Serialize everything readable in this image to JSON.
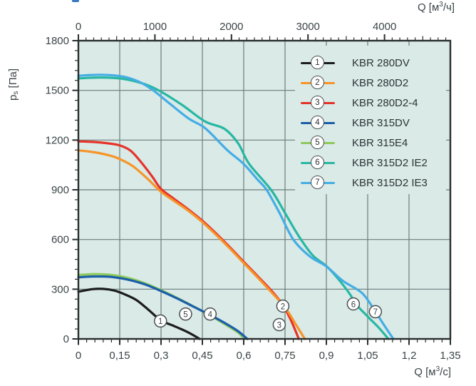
{
  "page": {
    "background": "#ffffff",
    "fragment_color": "#3a7ac0"
  },
  "axes_titles": {
    "top": {
      "prefix": "Q [м",
      "sup": "3",
      "suffix": "/ч]"
    },
    "bottom": {
      "prefix": "Q [м",
      "sup": "3",
      "suffix": "/с]"
    },
    "left": {
      "p": "p",
      "sub": "s",
      "units": " [Па]"
    }
  },
  "legend": {
    "items": [
      {
        "num": "1",
        "label": "KBR 280DV"
      },
      {
        "num": "2",
        "label": "KBR 280D2"
      },
      {
        "num": "3",
        "label": "KBR 280D2-4"
      },
      {
        "num": "4",
        "label": "KBR 315DV"
      },
      {
        "num": "5",
        "label": "KBR 315E4"
      },
      {
        "num": "6",
        "label": "KBR 315D2 IE2"
      },
      {
        "num": "7",
        "label": "KBR 315D2 IE3"
      }
    ]
  },
  "chart_data": {
    "type": "line",
    "title": "Fan performance curves: static pressure vs flow rate",
    "plot_bg": "#d9eae7",
    "grid_color": "#6e7d7b",
    "axis_color": "#2a2e2e",
    "tick_text_color": "#3b4547",
    "marker_border_color": "#4a5052",
    "x_bottom": {
      "label": "Q [м³/с]",
      "min": 0,
      "max": 1.35,
      "major_ticks": [
        0,
        0.15,
        0.3,
        0.45,
        0.6,
        0.75,
        0.9,
        1.05,
        1.2,
        1.35
      ],
      "tick_labels": [
        "0",
        "0,15",
        "0,3",
        "0,45",
        "0,6",
        "0,75",
        "0,9",
        "1,05",
        "1,2",
        "1,35"
      ],
      "minor_step": 0.03
    },
    "x_top": {
      "label": "Q [м³/ч]",
      "min": 0,
      "max": 4860,
      "major_ticks": [
        0,
        1000,
        2000,
        3000,
        4000
      ],
      "tick_labels": [
        "0",
        "1000",
        "2000",
        "3000",
        "4000"
      ],
      "minor_step": 100,
      "conversion_to_bottom": 3600
    },
    "y": {
      "label": "pₛ [Па]",
      "min": 0,
      "max": 1800,
      "major_ticks": [
        0,
        300,
        600,
        900,
        1200,
        1500,
        1800
      ],
      "tick_labels": [
        "0",
        "300",
        "600",
        "900",
        "1200",
        "1500",
        "1800"
      ],
      "minor_step": 60
    },
    "series": [
      {
        "num": "1",
        "name": "KBR 280DV",
        "color": "#1c1c1c",
        "points": [
          [
            0,
            285
          ],
          [
            0.05,
            300
          ],
          [
            0.09,
            302
          ],
          [
            0.13,
            292
          ],
          [
            0.17,
            268
          ],
          [
            0.21,
            235
          ],
          [
            0.25,
            182
          ],
          [
            0.3,
            112
          ],
          [
            0.35,
            76
          ],
          [
            0.4,
            38
          ],
          [
            0.44,
            0
          ]
        ]
      },
      {
        "num": "2",
        "name": "KBR 280D2",
        "color": "#f79428",
        "points": [
          [
            0,
            1138
          ],
          [
            0.06,
            1126
          ],
          [
            0.12,
            1104
          ],
          [
            0.16,
            1078
          ],
          [
            0.2,
            1040
          ],
          [
            0.25,
            968
          ],
          [
            0.3,
            888
          ],
          [
            0.35,
            830
          ],
          [
            0.4,
            772
          ],
          [
            0.45,
            705
          ],
          [
            0.5,
            628
          ],
          [
            0.55,
            545
          ],
          [
            0.6,
            458
          ],
          [
            0.65,
            372
          ],
          [
            0.7,
            283
          ],
          [
            0.75,
            190
          ],
          [
            0.79,
            85
          ],
          [
            0.822,
            0
          ]
        ]
      },
      {
        "num": "3",
        "name": "KBR 280D2-4",
        "color": "#e63329",
        "points": [
          [
            0,
            1192
          ],
          [
            0.06,
            1188
          ],
          [
            0.11,
            1180
          ],
          [
            0.15,
            1168
          ],
          [
            0.19,
            1135
          ],
          [
            0.23,
            1062
          ],
          [
            0.27,
            975
          ],
          [
            0.3,
            905
          ],
          [
            0.35,
            842
          ],
          [
            0.4,
            780
          ],
          [
            0.45,
            713
          ],
          [
            0.5,
            636
          ],
          [
            0.55,
            553
          ],
          [
            0.6,
            466
          ],
          [
            0.65,
            380
          ],
          [
            0.7,
            292
          ],
          [
            0.74,
            210
          ],
          [
            0.77,
            118
          ],
          [
            0.8,
            0
          ]
        ]
      },
      {
        "num": "4",
        "name": "KBR 315DV",
        "color": "#1b5ea8",
        "points": [
          [
            0,
            372
          ],
          [
            0.06,
            377
          ],
          [
            0.12,
            374
          ],
          [
            0.18,
            358
          ],
          [
            0.24,
            330
          ],
          [
            0.3,
            289
          ],
          [
            0.36,
            243
          ],
          [
            0.42,
            193
          ],
          [
            0.48,
            143
          ],
          [
            0.54,
            88
          ],
          [
            0.58,
            46
          ],
          [
            0.613,
            0
          ]
        ]
      },
      {
        "num": "5",
        "name": "KBR 315E4",
        "color": "#8fca5c",
        "points": [
          [
            0,
            386
          ],
          [
            0.06,
            391
          ],
          [
            0.12,
            386
          ],
          [
            0.18,
            368
          ],
          [
            0.24,
            337
          ],
          [
            0.3,
            294
          ],
          [
            0.36,
            246
          ],
          [
            0.42,
            194
          ],
          [
            0.48,
            140
          ],
          [
            0.54,
            80
          ],
          [
            0.58,
            38
          ],
          [
            0.602,
            0
          ]
        ]
      },
      {
        "num": "6",
        "name": "KBR 315D2 IE2",
        "color": "#27b7a3",
        "points": [
          [
            0,
            1572
          ],
          [
            0.08,
            1578
          ],
          [
            0.16,
            1570
          ],
          [
            0.24,
            1538
          ],
          [
            0.3,
            1492
          ],
          [
            0.38,
            1408
          ],
          [
            0.46,
            1312
          ],
          [
            0.53,
            1268
          ],
          [
            0.58,
            1180
          ],
          [
            0.62,
            1056
          ],
          [
            0.7,
            898
          ],
          [
            0.75,
            760
          ],
          [
            0.8,
            620
          ],
          [
            0.85,
            505
          ],
          [
            0.9,
            440
          ],
          [
            0.94,
            368
          ],
          [
            0.983,
            276
          ],
          [
            1.01,
            205
          ],
          [
            1.05,
            135
          ],
          [
            1.09,
            68
          ],
          [
            1.125,
            0
          ]
        ]
      },
      {
        "num": "7",
        "name": "KBR 315D2 IE3",
        "color": "#44ade4",
        "points": [
          [
            0,
            1588
          ],
          [
            0.08,
            1594
          ],
          [
            0.16,
            1584
          ],
          [
            0.22,
            1552
          ],
          [
            0.27,
            1502
          ],
          [
            0.33,
            1422
          ],
          [
            0.4,
            1330
          ],
          [
            0.46,
            1272
          ],
          [
            0.54,
            1140
          ],
          [
            0.6,
            1056
          ],
          [
            0.65,
            962
          ],
          [
            0.683,
            900
          ],
          [
            0.73,
            760
          ],
          [
            0.78,
            600
          ],
          [
            0.84,
            498
          ],
          [
            0.9,
            438
          ],
          [
            0.96,
            350
          ],
          [
            1.03,
            276
          ],
          [
            1.078,
            164
          ],
          [
            1.11,
            82
          ],
          [
            1.143,
            0
          ]
        ]
      }
    ],
    "curve_markers": [
      {
        "num": "1",
        "q": 0.298,
        "p": 108
      },
      {
        "num": "2",
        "q": 0.742,
        "p": 198
      },
      {
        "num": "3",
        "q": 0.729,
        "p": 86
      },
      {
        "num": "4",
        "q": 0.478,
        "p": 150
      },
      {
        "num": "5",
        "q": 0.389,
        "p": 150
      },
      {
        "num": "6",
        "q": 0.998,
        "p": 211
      },
      {
        "num": "7",
        "q": 1.078,
        "p": 164
      }
    ],
    "legend_position": "top-right-inside",
    "grid": true
  }
}
